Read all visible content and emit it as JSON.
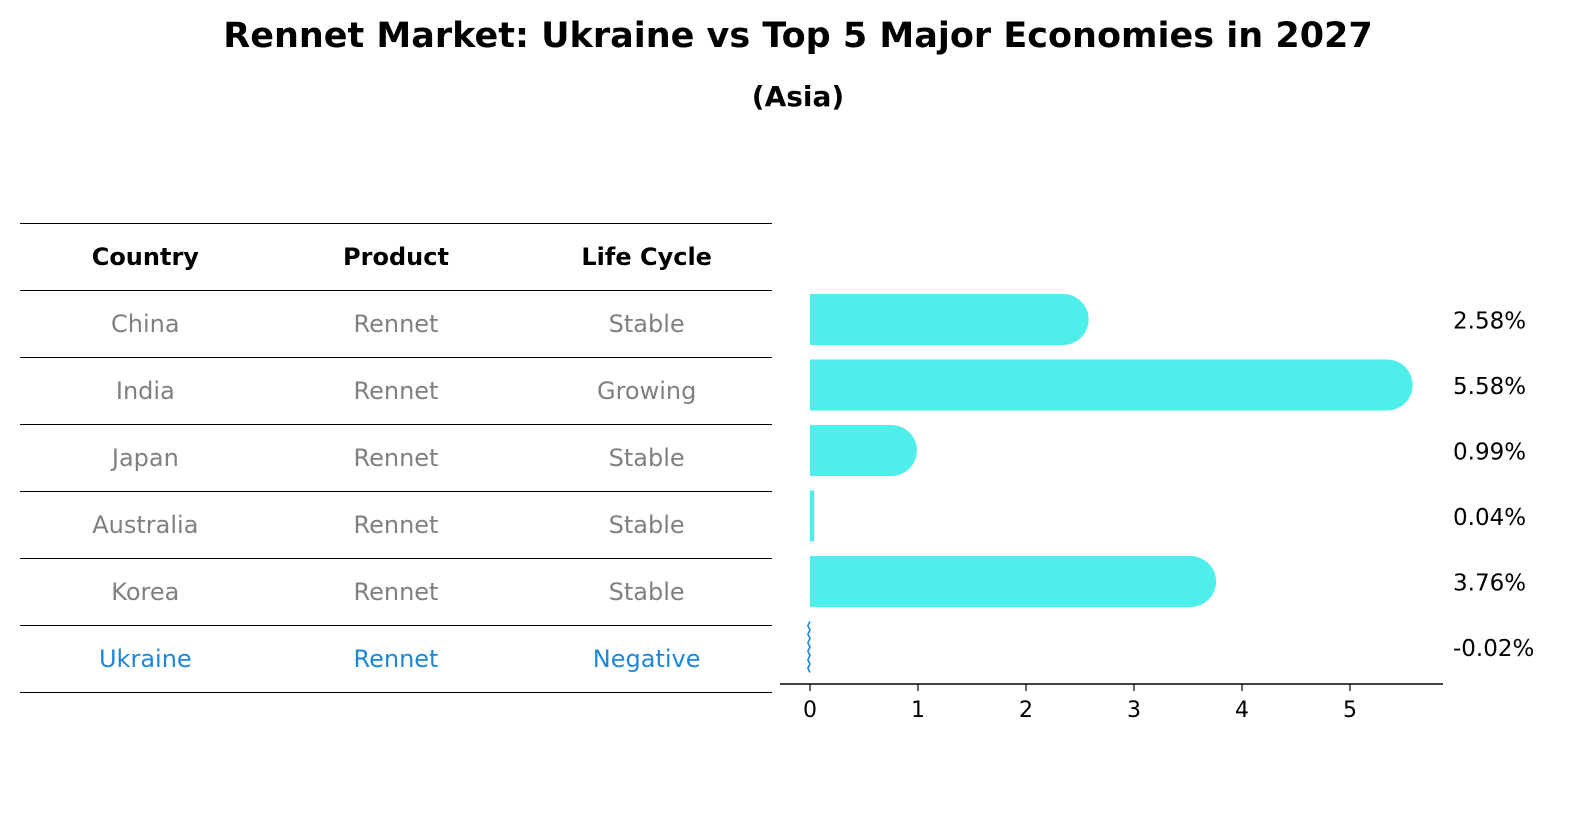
{
  "header": {
    "title": "Rennet Market: Ukraine vs Top 5 Major Economies in 2027",
    "subtitle": "(Asia)"
  },
  "table": {
    "columns": [
      "Country",
      "Product",
      "Life Cycle"
    ],
    "rows": [
      {
        "country": "China",
        "product": "Rennet",
        "life_cycle": "Stable"
      },
      {
        "country": "India",
        "product": "Rennet",
        "life_cycle": "Growing"
      },
      {
        "country": "Japan",
        "product": "Rennet",
        "life_cycle": "Stable"
      },
      {
        "country": "Australia",
        "product": "Rennet",
        "life_cycle": "Stable"
      },
      {
        "country": "Korea",
        "product": "Rennet",
        "life_cycle": "Stable"
      },
      {
        "country": "Ukraine",
        "product": "Rennet",
        "life_cycle": "Negative"
      }
    ]
  },
  "colors": {
    "bar": "#4eeeea",
    "highlight": "#1f88d6",
    "row_text": "#808080"
  },
  "chart_data": {
    "type": "bar",
    "orientation": "horizontal",
    "title": "Rennet Market: Ukraine vs Top 5 Major Economies in 2027",
    "subtitle": "(Asia)",
    "categories": [
      "China",
      "India",
      "Japan",
      "Australia",
      "Korea",
      "Ukraine"
    ],
    "values": [
      2.58,
      5.58,
      0.99,
      0.04,
      3.76,
      -0.02
    ],
    "value_labels": [
      "2.58%",
      "5.58%",
      "0.99%",
      "0.04%",
      "3.76%",
      "-0.02%"
    ],
    "xticks": [
      0,
      1,
      2,
      3,
      4,
      5
    ],
    "xlim": [
      -0.3,
      5.85
    ],
    "xlabel": "",
    "ylabel": "",
    "grid": false,
    "legend": "none"
  }
}
